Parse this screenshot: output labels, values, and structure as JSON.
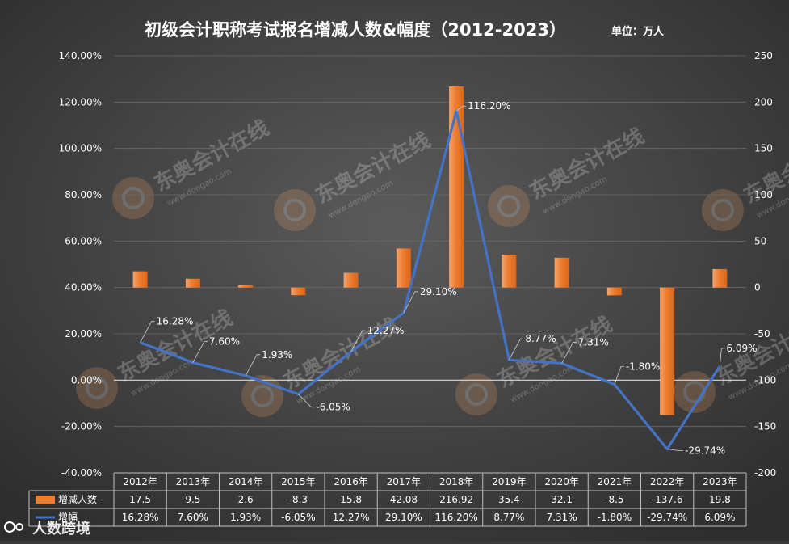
{
  "chart_data": {
    "type": "bar",
    "title": "初级会计职称考试报名增减人数&幅度（2012-2023）",
    "unit_label": "单位：万人",
    "categories": [
      "2012年",
      "2013年",
      "2014年",
      "2015年",
      "2016年",
      "2017年",
      "2018年",
      "2019年",
      "2020年",
      "2021年",
      "2022年",
      "2023年"
    ],
    "series": [
      {
        "name": "增减人数",
        "type": "bar",
        "axis": "right",
        "color": "#ed7d31",
        "values": [
          17.5,
          9.5,
          2.6,
          -8.3,
          15.8,
          42.08,
          216.92,
          35.4,
          32.1,
          -8.5,
          -137.6,
          19.8
        ],
        "table_labels": [
          "17.5",
          "9.5",
          "2.6",
          "-8.3",
          "15.8",
          "42.08",
          "216.92",
          "35.4",
          "32.1",
          "-8.5",
          "-137.6",
          "19.8"
        ]
      },
      {
        "name": "增幅",
        "type": "line",
        "axis": "left",
        "color": "#4472c4",
        "values": [
          16.28,
          7.6,
          1.93,
          -6.05,
          12.27,
          29.1,
          116.2,
          8.77,
          7.31,
          -1.8,
          -29.74,
          6.09
        ],
        "data_labels": [
          "16.28%",
          "7.60%",
          "1.93%",
          "-6.05%",
          "12.27%",
          "29.10%",
          "116.20%",
          "8.77%",
          "7.31%",
          "-1.80%",
          "-29.74%",
          "6.09%"
        ]
      }
    ],
    "left_axis": {
      "ylim": [
        -40,
        140
      ],
      "ticks": [
        -40,
        -20,
        0,
        20,
        40,
        60,
        80,
        100,
        120,
        140
      ],
      "tick_labels": [
        "-40.00%",
        "-20.00%",
        "0.00%",
        "20.00%",
        "40.00%",
        "60.00%",
        "80.00%",
        "100.00%",
        "120.00%",
        "140.00%"
      ]
    },
    "right_axis": {
      "ylim": [
        -200,
        250
      ],
      "ticks": [
        -200,
        -150,
        -100,
        -50,
        0,
        50,
        100,
        150,
        200,
        250
      ],
      "tick_labels": [
        "-200",
        "-150",
        "-100",
        "-50",
        "0",
        "50",
        "100",
        "150",
        "200",
        "250"
      ]
    },
    "data_table": true,
    "watermark": "东奥会计在线",
    "watermark_sub": "www.dongao.com",
    "corner_logo": "人数跨境"
  }
}
